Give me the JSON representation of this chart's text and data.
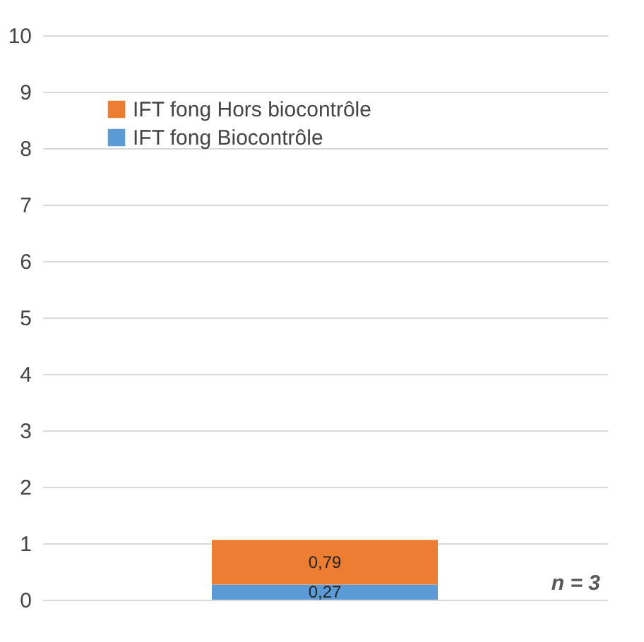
{
  "chart_data": {
    "type": "bar",
    "stacked": true,
    "categories": [
      null
    ],
    "series": [
      {
        "name": "IFT fong Biocontrôle",
        "color": "#5b9bd5",
        "values": [
          0.27
        ],
        "value_labels": [
          "0,27"
        ]
      },
      {
        "name": "IFT  fong Hors biocontrôle",
        "color": "#ed7d31",
        "values": [
          0.79
        ],
        "value_labels": [
          "0,79"
        ]
      }
    ],
    "ylim": [
      0,
      10
    ],
    "yticks": [
      0,
      1,
      2,
      3,
      4,
      5,
      6,
      7,
      8,
      9,
      10
    ],
    "grid": "y",
    "legend": "top left",
    "annotations": [
      "n = 3"
    ]
  }
}
